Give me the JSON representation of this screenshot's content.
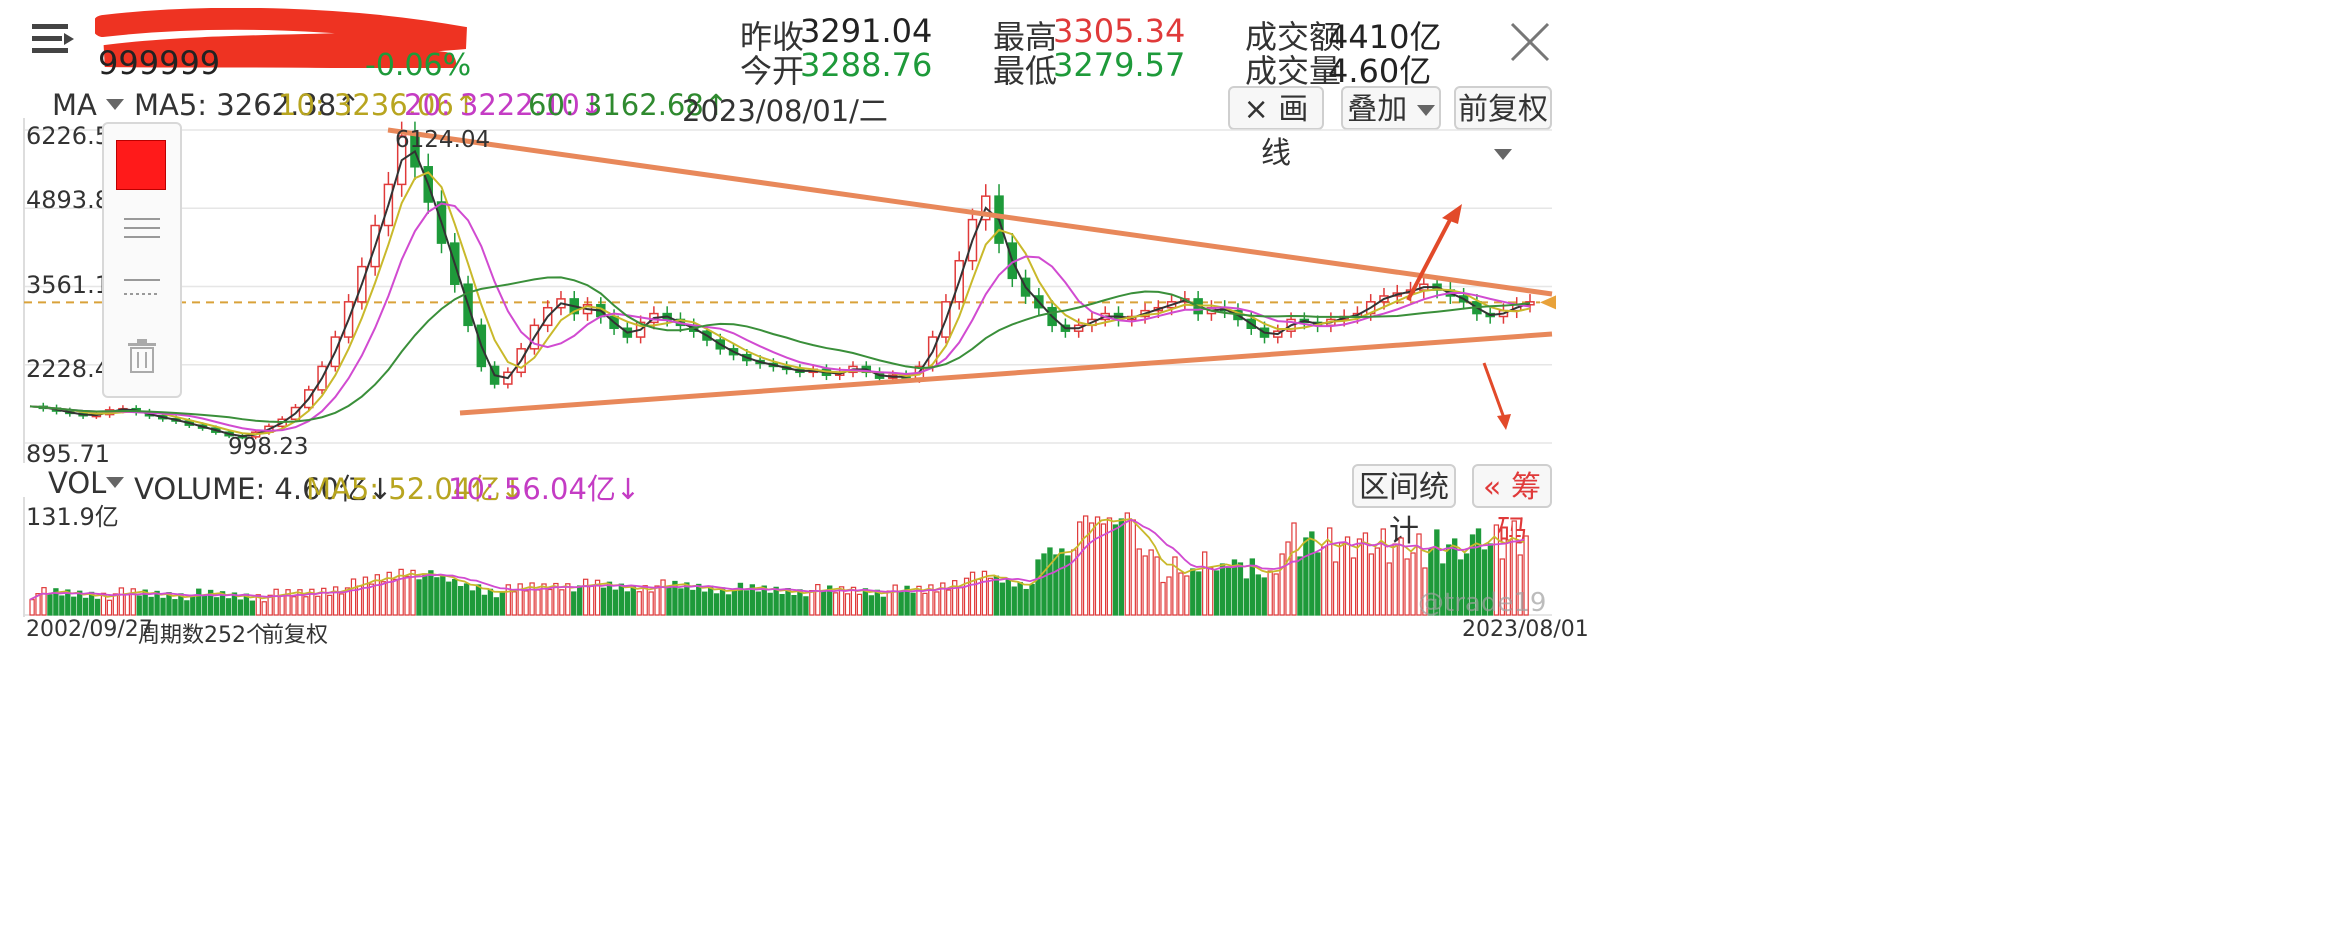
{
  "header": {
    "code": "999999",
    "prev_close_label": "昨收",
    "prev_close": "3291.04",
    "open_label": "今开",
    "open": "3288.76",
    "high_label": "最高",
    "high": "3305.34",
    "low_label": "最低",
    "low": "3279.57",
    "turnover_label": "成交额",
    "turnover": "4410亿",
    "volume_label": "成交量",
    "volume": "4.60亿",
    "change_pct": "-0.06%"
  },
  "ma_bar": {
    "label": "MA",
    "ma5": "MA5: 3262.38↑",
    "ma10": "10: 3236.06↑",
    "ma20": "20: 3222.10↓",
    "ma60": "60: 3162.68↑",
    "date": "2023/08/01/二",
    "draw_line": "× 画线",
    "overlay": "叠加",
    "adjust": "前复权"
  },
  "vol_bar": {
    "label": "VOL",
    "volume": "VOLUME: 4.60亿↓",
    "ma5": "MA5: 52.04亿↓",
    "ma10": "10: 56.04亿↓",
    "range_stats": "区间统计",
    "chips": "« 筹码"
  },
  "price_axis": [
    "6226.56",
    "4893.85",
    "3561.14",
    "2228.42",
    "895.71"
  ],
  "annotations": {
    "peak": "6124.04",
    "trough": "998.23"
  },
  "vol_axis": {
    "top": "131.9亿"
  },
  "footer": {
    "start_date": "2002/09/27",
    "period_count": "周期数252个",
    "adjust": "前复权",
    "end_date": "2023/08/01",
    "watermark": "@trade19"
  },
  "colors": {
    "up": "#e03a3a",
    "down": "#1e9a3a",
    "ma5": "#333333",
    "ma10": "#c9b92b",
    "ma20": "#d14bd1",
    "ma60": "#3a8f3a",
    "trend": "#e8885a",
    "arrow": "#e24a2a"
  },
  "icons": {
    "menu": "menu-icon",
    "close": "close-icon",
    "trash": "trash-icon"
  },
  "chart_data": {
    "type": "candlestick",
    "x_range": [
      "2002/09/27",
      "2023/08/01"
    ],
    "y_ticks": [
      6226.56,
      4893.85,
      3561.14,
      2228.42,
      895.71
    ],
    "close_series": [
      1520,
      1490,
      1440,
      1400,
      1360,
      1380,
      1460,
      1480,
      1420,
      1360,
      1310,
      1270,
      1200,
      1150,
      1080,
      1020,
      1000,
      1080,
      1180,
      1300,
      1500,
      1800,
      2200,
      2700,
      3300,
      3900,
      4600,
      5300,
      6124,
      5600,
      5000,
      4300,
      3600,
      2900,
      2200,
      1900,
      2100,
      2500,
      2900,
      3200,
      3350,
      3100,
      3250,
      3050,
      2850,
      2700,
      2950,
      3100,
      3000,
      2900,
      2800,
      2650,
      2500,
      2400,
      2300,
      2250,
      2200,
      2150,
      2100,
      2150,
      2050,
      2100,
      2200,
      2100,
      2000,
      2050,
      2000,
      2200,
      2700,
      3300,
      4000,
      4700,
      5100,
      4300,
      3700,
      3400,
      3200,
      2900,
      2800,
      2900,
      3000,
      3100,
      3000,
      3050,
      3150,
      3200,
      3300,
      3350,
      3100,
      3200,
      3150,
      3000,
      2850,
      2700,
      2800,
      3000,
      2950,
      2900,
      3000,
      3050,
      3100,
      3300,
      3400,
      3450,
      3500,
      3600,
      3500,
      3400,
      3300,
      3100,
      3050,
      3150,
      3250,
      3300
    ]
  }
}
